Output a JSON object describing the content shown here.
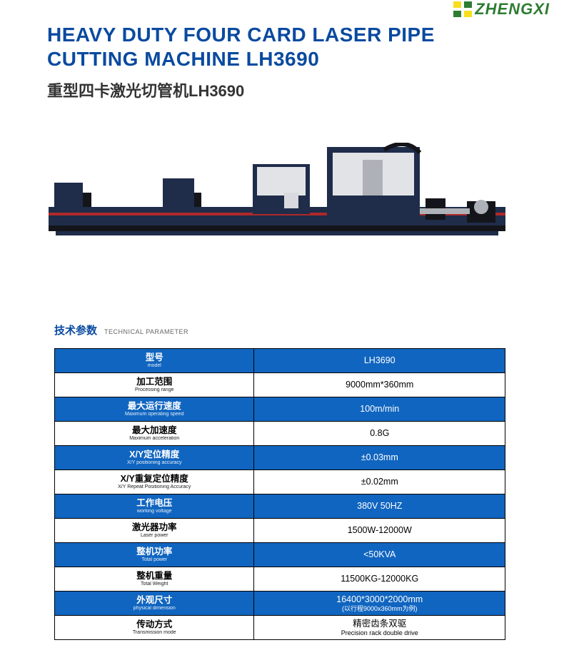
{
  "brand": {
    "name": "ZHENGXI",
    "logo_colors": {
      "tl": "#f7df1e",
      "tr": "#2e7d32",
      "bl": "#2e7d32",
      "br": "#f7df1e"
    },
    "text_color": "#2e7d32"
  },
  "title": {
    "en": "HEAVY DUTY FOUR CARD LASER PIPE CUTTING MACHINE LH3690",
    "cn": "重型四卡激光切管机LH3690",
    "color": "#0a4aa0"
  },
  "section": {
    "cn": "技术参数",
    "en": "TECHNICAL PARAMETER",
    "cn_color": "#0a4aa0"
  },
  "table": {
    "blue_bg": "#1065c0",
    "border_color": "#000000",
    "text_white": "#ffffff",
    "rows": [
      {
        "style": "blue",
        "label_cn": "型号",
        "label_en": "model",
        "value": "LH3690"
      },
      {
        "style": "white",
        "label_cn": "加工范围",
        "label_en": "Processing range",
        "value": "9000mm*360mm"
      },
      {
        "style": "blue",
        "label_cn": "最大运行速度",
        "label_en": "Maximum operating speed",
        "value": "100m/min"
      },
      {
        "style": "white",
        "label_cn": "最大加速度",
        "label_en": "Maximum acceleration",
        "value": "0.8G"
      },
      {
        "style": "blue",
        "label_cn": "X/Y定位精度",
        "label_en": "X/Y positioning accuracy",
        "value": "±0.03mm"
      },
      {
        "style": "white",
        "label_cn": "X/Y重复定位精度",
        "label_en": "X/Y Repeat Positioning Accuracy",
        "value": "±0.02mm"
      },
      {
        "style": "blue",
        "label_cn": "工作电压",
        "label_en": "working voltage",
        "value": "380V 50HZ"
      },
      {
        "style": "white",
        "label_cn": "激光器功率",
        "label_en": "Laser power",
        "value": "1500W-12000W"
      },
      {
        "style": "blue",
        "label_cn": "整机功率",
        "label_en": "Total power",
        "value": "<50KVA"
      },
      {
        "style": "white",
        "label_cn": "整机重量",
        "label_en": "Total Weight",
        "value": "11500KG-12000KG"
      },
      {
        "style": "blue",
        "label_cn": "外观尺寸",
        "label_en": "physical dimension",
        "value": "16400*3000*2000mm",
        "value2": "(以行程9000x360mm为例)"
      },
      {
        "style": "white",
        "label_cn": "传动方式",
        "label_en": "Transmission mode",
        "value": "精密齿条双驱",
        "value2": "Precision rack double drive"
      }
    ]
  },
  "machine": {
    "body_color": "#1f2c4a",
    "accent_red": "#b02828",
    "dark": "#14151a",
    "grey": "#aeb1b7",
    "light_grey": "#e2e3e6"
  }
}
